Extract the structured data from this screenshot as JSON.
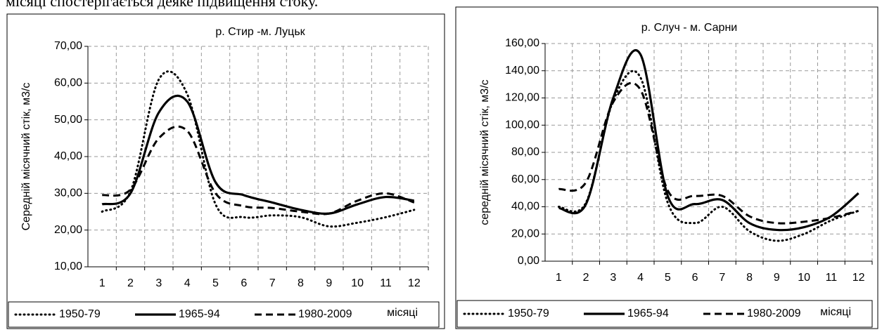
{
  "caption": "місяці спостерігається деяке підвищення стоку.",
  "chart_data": [
    {
      "type": "line",
      "title": "р. Стир -м. Луцьк",
      "y_label": "Середній місячний стік, м3/с",
      "x_label": "місяці",
      "categories": [
        "1",
        "2",
        "3",
        "4",
        "5",
        "6",
        "7",
        "8",
        "9",
        "10",
        "11",
        "12"
      ],
      "ylim": [
        10,
        70
      ],
      "yticks": [
        {
          "value": 10,
          "label": "10,00"
        },
        {
          "value": 20,
          "label": "20,00"
        },
        {
          "value": 30,
          "label": "30,00"
        },
        {
          "value": 40,
          "label": "40,00"
        },
        {
          "value": 50,
          "label": "50,00"
        },
        {
          "value": 60,
          "label": "60,00"
        },
        {
          "value": 70,
          "label": "70,00"
        }
      ],
      "grid": true,
      "legend": "bottom",
      "series": [
        {
          "name": "1950-79",
          "color": "#000000",
          "style": "dotted",
          "values": [
            25,
            30.5,
            61,
            57,
            27,
            23.5,
            24,
            23.5,
            21,
            22,
            23.5,
            25.5
          ]
        },
        {
          "name": "1965-94",
          "color": "#000000",
          "style": "solid",
          "values": [
            27,
            30,
            52,
            55,
            33,
            29.5,
            27.5,
            25.5,
            24.5,
            27,
            29,
            28
          ]
        },
        {
          "name": "1980-2009",
          "color": "#000000",
          "style": "dashed",
          "values": [
            29.5,
            31,
            45,
            47,
            30,
            26.5,
            26,
            25,
            24.5,
            28,
            30,
            27.5
          ]
        }
      ]
    },
    {
      "type": "line",
      "title": "р. Случ - м. Сарни",
      "y_label": "середній місячний стік, м3/с",
      "x_label": "місяці",
      "categories": [
        "1",
        "2",
        "3",
        "4",
        "5",
        "6",
        "7",
        "8",
        "9",
        "10",
        "11",
        "12"
      ],
      "ylim": [
        0,
        160
      ],
      "yticks": [
        {
          "value": 0,
          "label": "0,00"
        },
        {
          "value": 20,
          "label": "20,00"
        },
        {
          "value": 40,
          "label": "40,00"
        },
        {
          "value": 60,
          "label": "60,00"
        },
        {
          "value": 80,
          "label": "80,00"
        },
        {
          "value": 100,
          "label": "100,00"
        },
        {
          "value": 120,
          "label": "120,00"
        },
        {
          "value": 140,
          "label": "140,00"
        },
        {
          "value": 160,
          "label": "160,00"
        }
      ],
      "grid": true,
      "legend": "bottom",
      "series": [
        {
          "name": "1950-79",
          "color": "#000000",
          "style": "dotted",
          "values": [
            40,
            43,
            118,
            135,
            43,
            28,
            40,
            22,
            15,
            20,
            30,
            37
          ]
        },
        {
          "name": "1965-94",
          "color": "#000000",
          "style": "solid",
          "values": [
            39,
            42,
            120,
            152,
            48,
            42,
            45,
            28,
            23,
            25,
            33,
            50
          ]
        },
        {
          "name": "1980-2009",
          "color": "#000000",
          "style": "dashed",
          "values": [
            53,
            58,
            117,
            126,
            52,
            48,
            48,
            33,
            28,
            29,
            32,
            37
          ]
        }
      ]
    }
  ]
}
